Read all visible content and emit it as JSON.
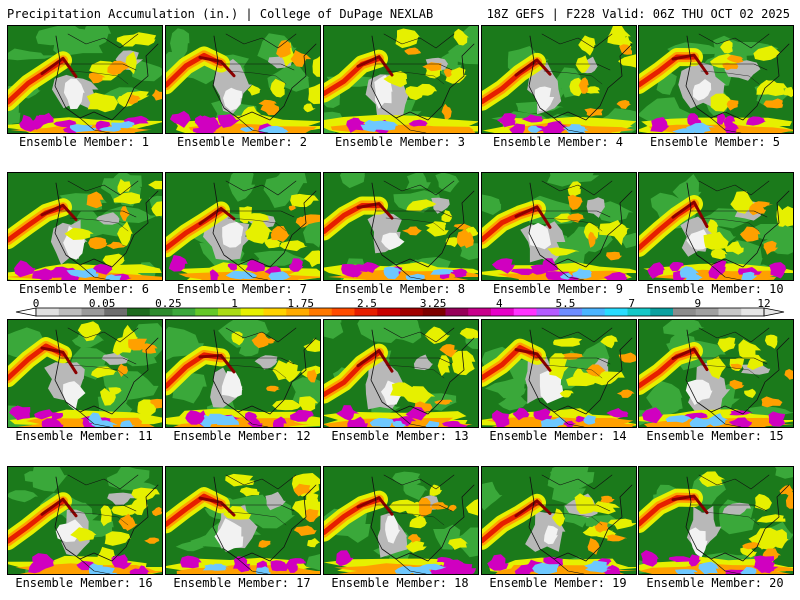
{
  "header": {
    "left": "Precipitation Accumulation (in.) | College of DuPage NEXLAB",
    "right": "18Z GEFS | F228 Valid: 06Z THU OCT 02 2025"
  },
  "members": [
    {
      "label": "Ensemble Member: 1"
    },
    {
      "label": "Ensemble Member: 2"
    },
    {
      "label": "Ensemble Member: 3"
    },
    {
      "label": "Ensemble Member: 4"
    },
    {
      "label": "Ensemble Member: 5"
    },
    {
      "label": "Ensemble Member: 6"
    },
    {
      "label": "Ensemble Member: 7"
    },
    {
      "label": "Ensemble Member: 8"
    },
    {
      "label": "Ensemble Member: 9"
    },
    {
      "label": "Ensemble Member: 10"
    },
    {
      "label": "Ensemble Member: 11"
    },
    {
      "label": "Ensemble Member: 12"
    },
    {
      "label": "Ensemble Member: 13"
    },
    {
      "label": "Ensemble Member: 14"
    },
    {
      "label": "Ensemble Member: 15"
    },
    {
      "label": "Ensemble Member: 16"
    },
    {
      "label": "Ensemble Member: 17"
    },
    {
      "label": "Ensemble Member: 18"
    },
    {
      "label": "Ensemble Member: 19"
    },
    {
      "label": "Ensemble Member: 20"
    }
  ],
  "colorbar": {
    "tick_labels": [
      "0",
      "0.05",
      "0.25",
      "1",
      "1.75",
      "2.5",
      "3.25",
      "4",
      "5.5",
      "7",
      "9",
      "12"
    ],
    "colors": [
      "#e0e0e0",
      "#bdbdbd",
      "#9a9a9a",
      "#6e6e6e",
      "#1e6b1e",
      "#2e8b2e",
      "#3ca83c",
      "#64c828",
      "#aadc14",
      "#e6f000",
      "#ffd200",
      "#ffaa00",
      "#ff7800",
      "#ff4b00",
      "#e61e00",
      "#c80000",
      "#a00000",
      "#7d0000",
      "#96005a",
      "#c8008c",
      "#e600c8",
      "#ff32ff",
      "#b45aff",
      "#6e8cff",
      "#4bb4ff",
      "#28dcff",
      "#14c8c8",
      "#0aa0a0",
      "#8c8c8c",
      "#a0a0a0",
      "#c8c8c8",
      "#e6e6e6"
    ]
  },
  "map_colors": {
    "base": "#1b7a1b",
    "light_green": "#3aa83a",
    "gray": "#b8b8b8",
    "white": "#f2f2f2",
    "yellow": "#e6f000",
    "orange": "#ffa000",
    "red": "#e61e00",
    "dark_red": "#8b0000",
    "magenta": "#d000c0",
    "light_blue": "#6ec8ff",
    "border": "#111111"
  }
}
